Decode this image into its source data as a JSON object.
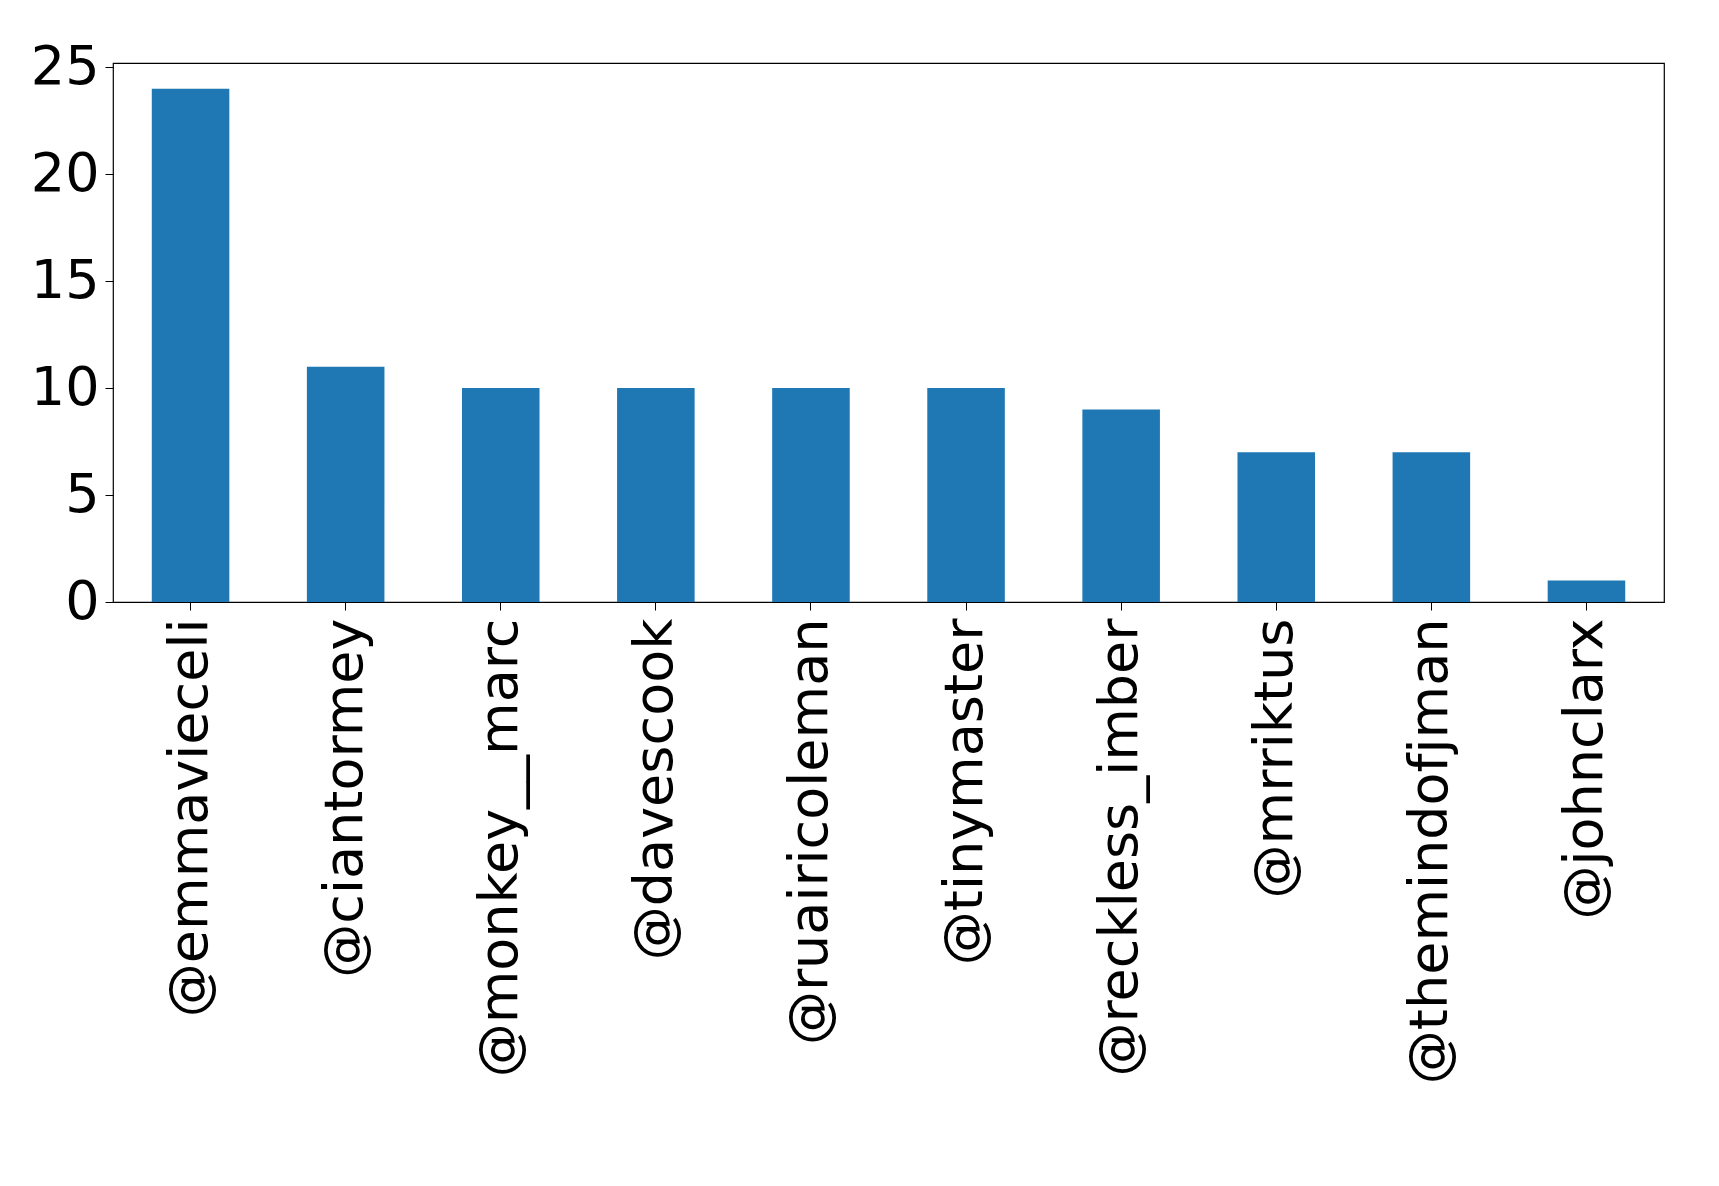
{
  "chart_data": {
    "type": "bar",
    "categories": [
      "@emmavieceli",
      "@ciantormey",
      "@monkey__marc",
      "@davescook",
      "@ruairicoleman",
      "@tinymaster",
      "@reckless_imber",
      "@mrriktus",
      "@themindofjman",
      "@johnclarx"
    ],
    "values": [
      24,
      11,
      10,
      10,
      10,
      10,
      9,
      7,
      7,
      1
    ],
    "color": "#1f77b4",
    "ylim": [
      0,
      25.2
    ],
    "yticks": [
      0,
      5,
      10,
      15,
      20,
      25
    ],
    "grid": false
  }
}
